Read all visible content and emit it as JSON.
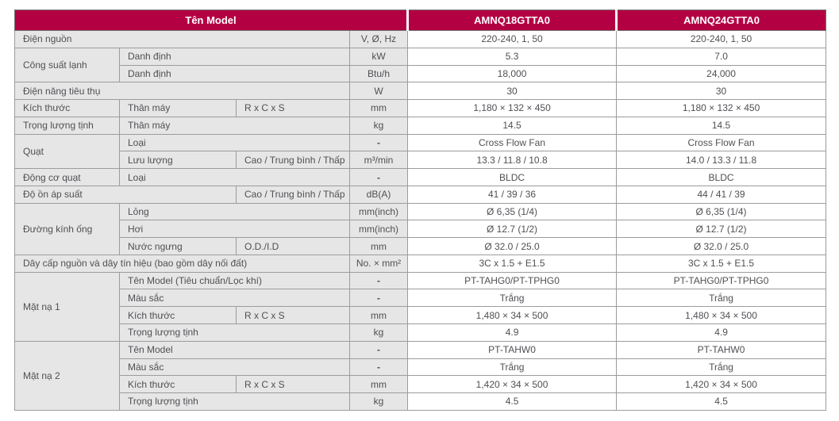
{
  "header": {
    "title": "Tên Model",
    "models": [
      "AMNQ18GTTA0",
      "AMNQ24GTTA0"
    ]
  },
  "colors": {
    "header_bg": "#b30043",
    "header_text": "#ffffff",
    "label_bg": "#e6e6e6",
    "value_bg": "#ffffff",
    "border": "#9c9c9c",
    "text": "#4f5054"
  },
  "rows": [
    {
      "cells": [
        {
          "t": "Điện nguồn",
          "cs": 3,
          "c": "lbl"
        },
        {
          "t": "V, Ø, Hz",
          "c": "unit"
        },
        {
          "t": "220-240, 1, 50",
          "c": "val"
        },
        {
          "t": "220-240, 1, 50",
          "c": "val"
        }
      ]
    },
    {
      "cells": [
        {
          "t": "Công suất lạnh",
          "rs": 2,
          "c": "lbl"
        },
        {
          "t": "Danh định",
          "cs": 2,
          "c": "lbl"
        },
        {
          "t": "kW",
          "c": "unit"
        },
        {
          "t": "5.3",
          "c": "val"
        },
        {
          "t": "7.0",
          "c": "val"
        }
      ]
    },
    {
      "cells": [
        {
          "t": "Danh định",
          "cs": 2,
          "c": "lbl"
        },
        {
          "t": "Btu/h",
          "c": "unit"
        },
        {
          "t": "18,000",
          "c": "val"
        },
        {
          "t": "24,000",
          "c": "val"
        }
      ]
    },
    {
      "cells": [
        {
          "t": "Điện năng tiêu thụ",
          "cs": 3,
          "c": "lbl"
        },
        {
          "t": "W",
          "c": "unit"
        },
        {
          "t": "30",
          "c": "val"
        },
        {
          "t": "30",
          "c": "val"
        }
      ]
    },
    {
      "cells": [
        {
          "t": "Kích thước",
          "c": "lbl"
        },
        {
          "t": "Thân máy",
          "c": "lbl"
        },
        {
          "t": "R x C x S",
          "c": "lbl"
        },
        {
          "t": "mm",
          "c": "unit"
        },
        {
          "t": "1,180 × 132 × 450",
          "c": "val"
        },
        {
          "t": "1,180 × 132 × 450",
          "c": "val"
        }
      ]
    },
    {
      "cells": [
        {
          "t": "Trọng lượng tịnh",
          "c": "lbl"
        },
        {
          "t": "Thân máy",
          "cs": 2,
          "c": "lbl"
        },
        {
          "t": "kg",
          "c": "unit"
        },
        {
          "t": "14.5",
          "c": "val"
        },
        {
          "t": "14.5",
          "c": "val"
        }
      ]
    },
    {
      "cells": [
        {
          "t": "Quạt",
          "rs": 2,
          "c": "lbl"
        },
        {
          "t": "Loại",
          "cs": 2,
          "c": "lbl"
        },
        {
          "t": "-",
          "c": "dash"
        },
        {
          "t": "Cross Flow Fan",
          "c": "val"
        },
        {
          "t": "Cross Flow Fan",
          "c": "val"
        }
      ]
    },
    {
      "cells": [
        {
          "t": "Lưu lượng",
          "c": "lbl"
        },
        {
          "t": "Cao / Trung bình / Thấp",
          "c": "lbl"
        },
        {
          "t": "m³/min",
          "c": "unit"
        },
        {
          "t": "13.3 / 11.8 / 10.8",
          "c": "val"
        },
        {
          "t": "14.0 / 13.3 / 11.8",
          "c": "val"
        }
      ]
    },
    {
      "cells": [
        {
          "t": "Động cơ quạt",
          "c": "lbl"
        },
        {
          "t": "Loại",
          "cs": 2,
          "c": "lbl"
        },
        {
          "t": "-",
          "c": "dash"
        },
        {
          "t": "BLDC",
          "c": "val"
        },
        {
          "t": "BLDC",
          "c": "val"
        }
      ]
    },
    {
      "cells": [
        {
          "t": "Độ ồn áp suất",
          "cs": 2,
          "c": "lbl"
        },
        {
          "t": "Cao / Trung bình / Thấp",
          "c": "lbl"
        },
        {
          "t": "dB(A)",
          "c": "unit"
        },
        {
          "t": "41 / 39 / 36",
          "c": "val"
        },
        {
          "t": "44 / 41 / 39",
          "c": "val"
        }
      ]
    },
    {
      "cells": [
        {
          "t": "Đường kính ống",
          "rs": 3,
          "c": "lbl"
        },
        {
          "t": "Lỏng",
          "cs": 2,
          "c": "lbl"
        },
        {
          "t": "mm(inch)",
          "c": "unit"
        },
        {
          "t": "Ø 6,35 (1/4)",
          "c": "val"
        },
        {
          "t": "Ø 6,35 (1/4)",
          "c": "val"
        }
      ]
    },
    {
      "cells": [
        {
          "t": "Hơi",
          "cs": 2,
          "c": "lbl"
        },
        {
          "t": "mm(inch)",
          "c": "unit"
        },
        {
          "t": "Ø 12.7 (1/2)",
          "c": "val"
        },
        {
          "t": "Ø 12.7 (1/2)",
          "c": "val"
        }
      ]
    },
    {
      "cells": [
        {
          "t": "Nước ngưng",
          "c": "lbl"
        },
        {
          "t": "O.D./I.D",
          "c": "lbl"
        },
        {
          "t": "mm",
          "c": "unit"
        },
        {
          "t": "Ø 32.0 / 25.0",
          "c": "val"
        },
        {
          "t": "Ø 32.0 / 25.0",
          "c": "val"
        }
      ]
    },
    {
      "cells": [
        {
          "t": "Dây cấp nguồn và dây tín hiệu (bao gồm dây nối đất)",
          "cs": 3,
          "c": "lbl"
        },
        {
          "t": "No. × mm²",
          "c": "unit"
        },
        {
          "t": "3C x 1.5 + E1.5",
          "c": "val"
        },
        {
          "t": "3C x 1.5 + E1.5",
          "c": "val"
        }
      ]
    },
    {
      "cells": [
        {
          "t": "Mặt nạ 1",
          "rs": 4,
          "c": "lbl"
        },
        {
          "t": "Tên Model (Tiêu chuẩn/Lọc khí)",
          "cs": 2,
          "c": "lbl"
        },
        {
          "t": "-",
          "c": "dash"
        },
        {
          "t": "PT-TAHG0/PT-TPHG0",
          "c": "val"
        },
        {
          "t": "PT-TAHG0/PT-TPHG0",
          "c": "val"
        }
      ]
    },
    {
      "cells": [
        {
          "t": "Màu sắc",
          "cs": 2,
          "c": "lbl"
        },
        {
          "t": "-",
          "c": "dash"
        },
        {
          "t": "Trắng",
          "c": "val"
        },
        {
          "t": "Trắng",
          "c": "val"
        }
      ]
    },
    {
      "cells": [
        {
          "t": "Kích thước",
          "c": "lbl"
        },
        {
          "t": "R x C x S",
          "c": "lbl"
        },
        {
          "t": "mm",
          "c": "unit"
        },
        {
          "t": "1,480 × 34 × 500",
          "c": "val"
        },
        {
          "t": "1,480 × 34 × 500",
          "c": "val"
        }
      ]
    },
    {
      "cells": [
        {
          "t": "Trọng lượng tịnh",
          "cs": 2,
          "c": "lbl"
        },
        {
          "t": "kg",
          "c": "unit"
        },
        {
          "t": "4.9",
          "c": "val"
        },
        {
          "t": "4.9",
          "c": "val"
        }
      ]
    },
    {
      "cells": [
        {
          "t": "Mặt nạ 2",
          "rs": 4,
          "c": "lbl"
        },
        {
          "t": "Tên Model",
          "cs": 2,
          "c": "lbl"
        },
        {
          "t": "-",
          "c": "dash"
        },
        {
          "t": "PT-TAHW0",
          "c": "val"
        },
        {
          "t": "PT-TAHW0",
          "c": "val"
        }
      ]
    },
    {
      "cells": [
        {
          "t": "Màu sắc",
          "cs": 2,
          "c": "lbl"
        },
        {
          "t": "-",
          "c": "dash"
        },
        {
          "t": "Trắng",
          "c": "val"
        },
        {
          "t": "Trắng",
          "c": "val"
        }
      ]
    },
    {
      "cells": [
        {
          "t": "Kích thước",
          "c": "lbl"
        },
        {
          "t": "R x C x S",
          "c": "lbl"
        },
        {
          "t": "mm",
          "c": "unit"
        },
        {
          "t": "1,420 × 34 × 500",
          "c": "val"
        },
        {
          "t": "1,420 × 34 × 500",
          "c": "val"
        }
      ]
    },
    {
      "cells": [
        {
          "t": "Trọng lượng tịnh",
          "cs": 2,
          "c": "lbl"
        },
        {
          "t": "kg",
          "c": "unit"
        },
        {
          "t": "4.5",
          "c": "val"
        },
        {
          "t": "4.5",
          "c": "val"
        }
      ]
    }
  ]
}
